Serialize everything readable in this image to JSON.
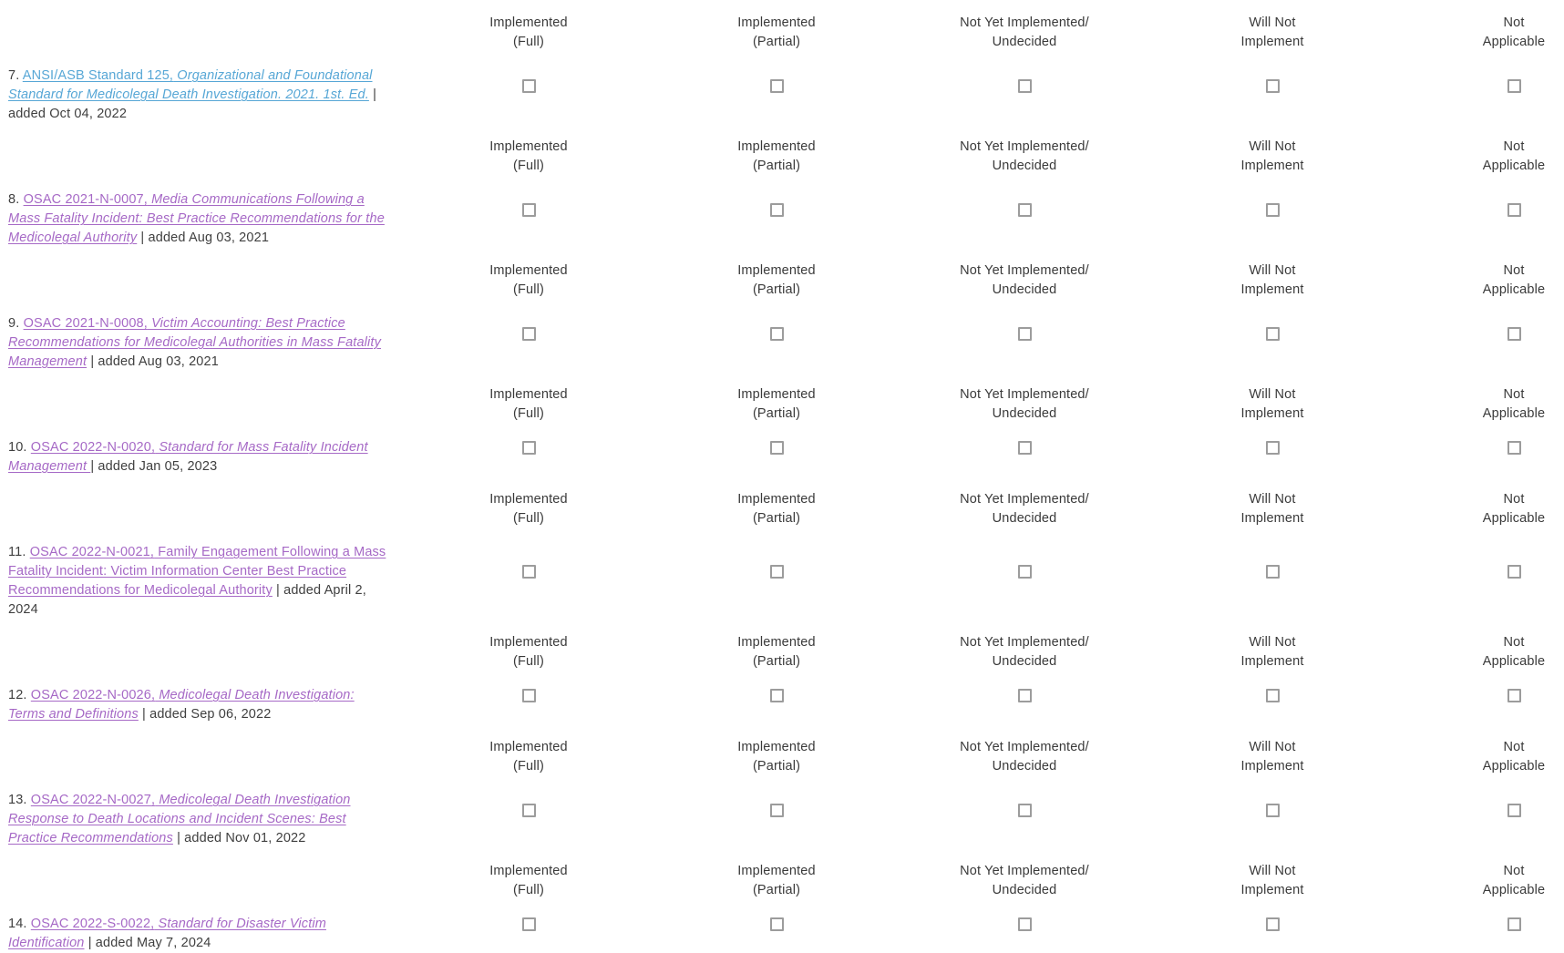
{
  "colors": {
    "link_unvisited": "#57a7d6",
    "link_visited": "#a669c6",
    "text": "#3f3f3f",
    "checkbox_border": "#9c9c9c"
  },
  "columns": [
    {
      "key": "implemented-full",
      "line1": "Implemented",
      "line2": "(Full)"
    },
    {
      "key": "implemented-partial",
      "line1": "Implemented",
      "line2": "(Partial)"
    },
    {
      "key": "not-yet-implemented-undecided",
      "line1": "Not Yet Implemented/",
      "line2": "Undecided"
    },
    {
      "key": "will-not-implement",
      "line1": "Will Not",
      "line2": "Implement"
    },
    {
      "key": "not-applicable",
      "line1": "Not",
      "line2": "Applicable"
    }
  ],
  "items": [
    {
      "number": "7. ",
      "code": "ANSI/ASB Standard 125,",
      "title": " Organizational and Foundational Standard for Medicolegal Death Investigation. 2021. 1st. Ed.",
      "suffix": " | added Oct 04, 2022",
      "visited": false,
      "title_italic": true
    },
    {
      "number": "8. ",
      "code": "OSAC 2021-N-0007,",
      "title": " Media Communications Following a Mass Fatality Incident: Best Practice Recommendations for the Medicolegal Authority",
      "suffix": " | added Aug 03, 2021",
      "visited": true,
      "title_italic": true
    },
    {
      "number": "9. ",
      "code": "OSAC 2021-N-0008,",
      "title": " Victim Accounting: Best Practice Recommendations for Medicolegal Authorities in Mass Fatality Management",
      "suffix": " | added Aug 03, 2021",
      "visited": true,
      "title_italic": true
    },
    {
      "number": "10. ",
      "code": "OSAC 2022-N-0020,",
      "title": " Standard for Mass Fatality Incident Management ",
      "suffix": "| added Jan 05, 2023",
      "visited": true,
      "title_italic": true
    },
    {
      "number": "11. ",
      "code": "OSAC 2022-N-0021,",
      "title": " Family Engagement Following a Mass Fatality Incident: Victim Information Center Best Practice Recommendations for Medicolegal Authority",
      "suffix": " | added April 2, 2024",
      "visited": true,
      "title_italic": false
    },
    {
      "number": "12. ",
      "code": "OSAC 2022-N-0026,",
      "title": " Medicolegal Death Investigation: Terms and Definitions",
      "suffix": " | added Sep 06, 2022",
      "visited": true,
      "title_italic": true
    },
    {
      "number": "13. ",
      "code": "OSAC 2022-N-0027,",
      "title": " Medicolegal Death Investigation Response to Death Locations and Incident Scenes: Best Practice Recommendations",
      "suffix": " | added Nov 01, 2022",
      "visited": true,
      "title_italic": true
    },
    {
      "number": "14. ",
      "code": "OSAC 2022-S-0022,",
      "title": " Standard for Disaster Victim Identification",
      "suffix": " | added May 7, 2024",
      "visited": true,
      "title_italic": true
    }
  ]
}
